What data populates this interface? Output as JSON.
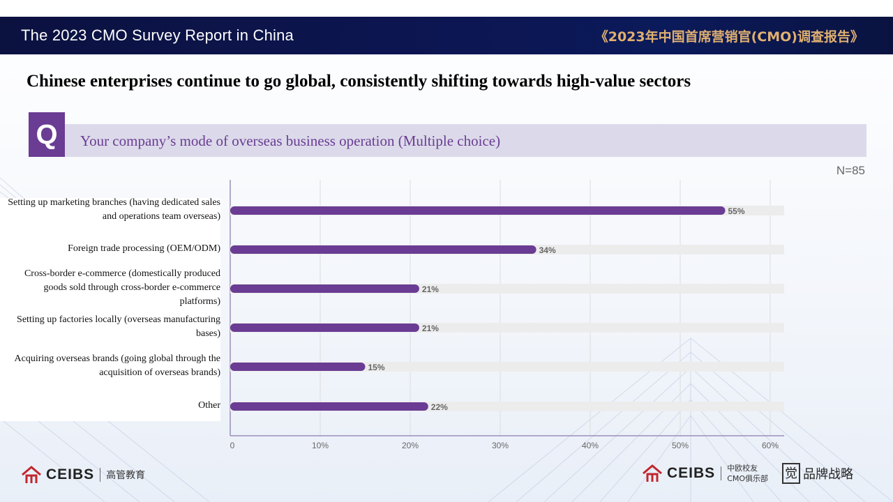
{
  "header": {
    "title": "The 2023 CMO Survey Report in China",
    "title_cn": "《2023年中国首席营销官(CMO)调查报告》"
  },
  "headline": "Chinese enterprises continue to go global, consistently shifting towards high-value sectors",
  "question": {
    "badge": "Q",
    "text": "Your company’s mode of overseas business operation (Multiple choice)"
  },
  "sample_size": "N=85",
  "colors": {
    "bar": "#6a3c93",
    "track": "#ececec",
    "header_bg": "#0b1240",
    "accent_gold": "#e0b070"
  },
  "chart_data": {
    "type": "bar",
    "orientation": "horizontal",
    "categories": [
      "Setting up marketing branches (having dedicated sales and operations team overseas)",
      "Foreign trade processing (OEM/ODM)",
      "Cross-border e-commerce (domestically produced goods sold through cross-border e-commerce platforms)",
      "Setting up factories locally (overseas manufacturing bases)",
      "Acquiring overseas brands (going global through the acquisition of overseas brands)",
      "Other"
    ],
    "values": [
      55,
      34,
      21,
      21,
      15,
      22
    ],
    "value_labels": [
      "55%",
      "34%",
      "21%",
      "21%",
      "15%",
      "22%"
    ],
    "xlim": [
      0,
      60
    ],
    "xticks": [
      "0",
      "10%",
      "20%",
      "30%",
      "40%",
      "50%",
      "60%"
    ],
    "grid": true
  },
  "footer": {
    "left_logo": "CEIBS",
    "left_logo_cn": "高管教育",
    "right_logo": "CEIBS",
    "right_club_line1": "中欧校友",
    "right_club_line2": "CMO俱乐部",
    "brand_mark": "觉",
    "brand_text": "品牌战略"
  }
}
